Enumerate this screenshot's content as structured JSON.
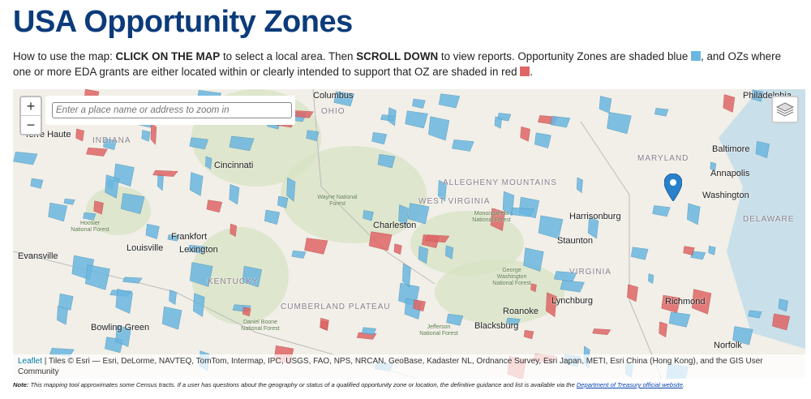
{
  "title": "USA Opportunity Zones",
  "intro": {
    "p1": "How to use the map: ",
    "b1": "CLICK ON THE MAP",
    "p2": " to select a local area. Then ",
    "b2": "SCROLL DOWN",
    "p3": " to view reports. Opportunity Zones are shaded blue ",
    "p4": ", and OZs where one or more EDA grants are either located within or clearly intended to support that OZ are shaded in red ",
    "p5": "."
  },
  "colors": {
    "oz_blue": "#6bb7e0",
    "eda_red": "#e06666",
    "title": "#0b3b7a"
  },
  "map": {
    "zoom_in": "+",
    "zoom_out": "−",
    "search_placeholder": "Enter a place name or address to zoom in",
    "layers_icon": "layers-icon",
    "marker_icon": "map-pin-icon",
    "labels": {
      "cities": [
        "Columbus",
        "Philadelphia",
        "Terre Haute",
        "Cincinnati",
        "Baltimore",
        "Annapolis",
        "Washington",
        "Charleston",
        "Harrisonburg",
        "Frankfort",
        "Lexington",
        "Louisville",
        "Staunton",
        "Evansville",
        "Lynchburg",
        "Roanoke",
        "Richmond",
        "Bowling Green",
        "Blacksburg",
        "Norfolk"
      ],
      "states": [
        "INDIANA",
        "OHIO",
        "WEST VIRGINIA",
        "MARYLAND",
        "DELAWARE",
        "KENTUCKY",
        "VIRGINIA"
      ],
      "parks": [
        "Wayne National Forest",
        "Hoosier National Forest",
        "Monongahela National Forest",
        "George Washington National Forest",
        "Daniel Boone National Forest",
        "Jefferson National Forest"
      ],
      "features": [
        "ALLEGHENY MOUNTAINS",
        "CUMBERLAND PLATEAU"
      ]
    },
    "attribution": {
      "leaflet": "Leaflet",
      "text": " | Tiles © Esri — Esri, DeLorme, NAVTEQ, TomTom, Intermap, IPC, USGS, FAO, NPS, NRCAN, GeoBase, Kadaster NL, Ordnance Survey, Esri Japan, METI, Esri China (Hong Kong), and the GIS User Community"
    }
  },
  "note": {
    "label": "Note:",
    "text": " This mapping tool approximates some Census tracts. If a user has questions about the geography or status of a qualified opportunity zone or location, the definitive guidance and list is available via the ",
    "link": "Department of Treasury official website",
    "end": "."
  }
}
